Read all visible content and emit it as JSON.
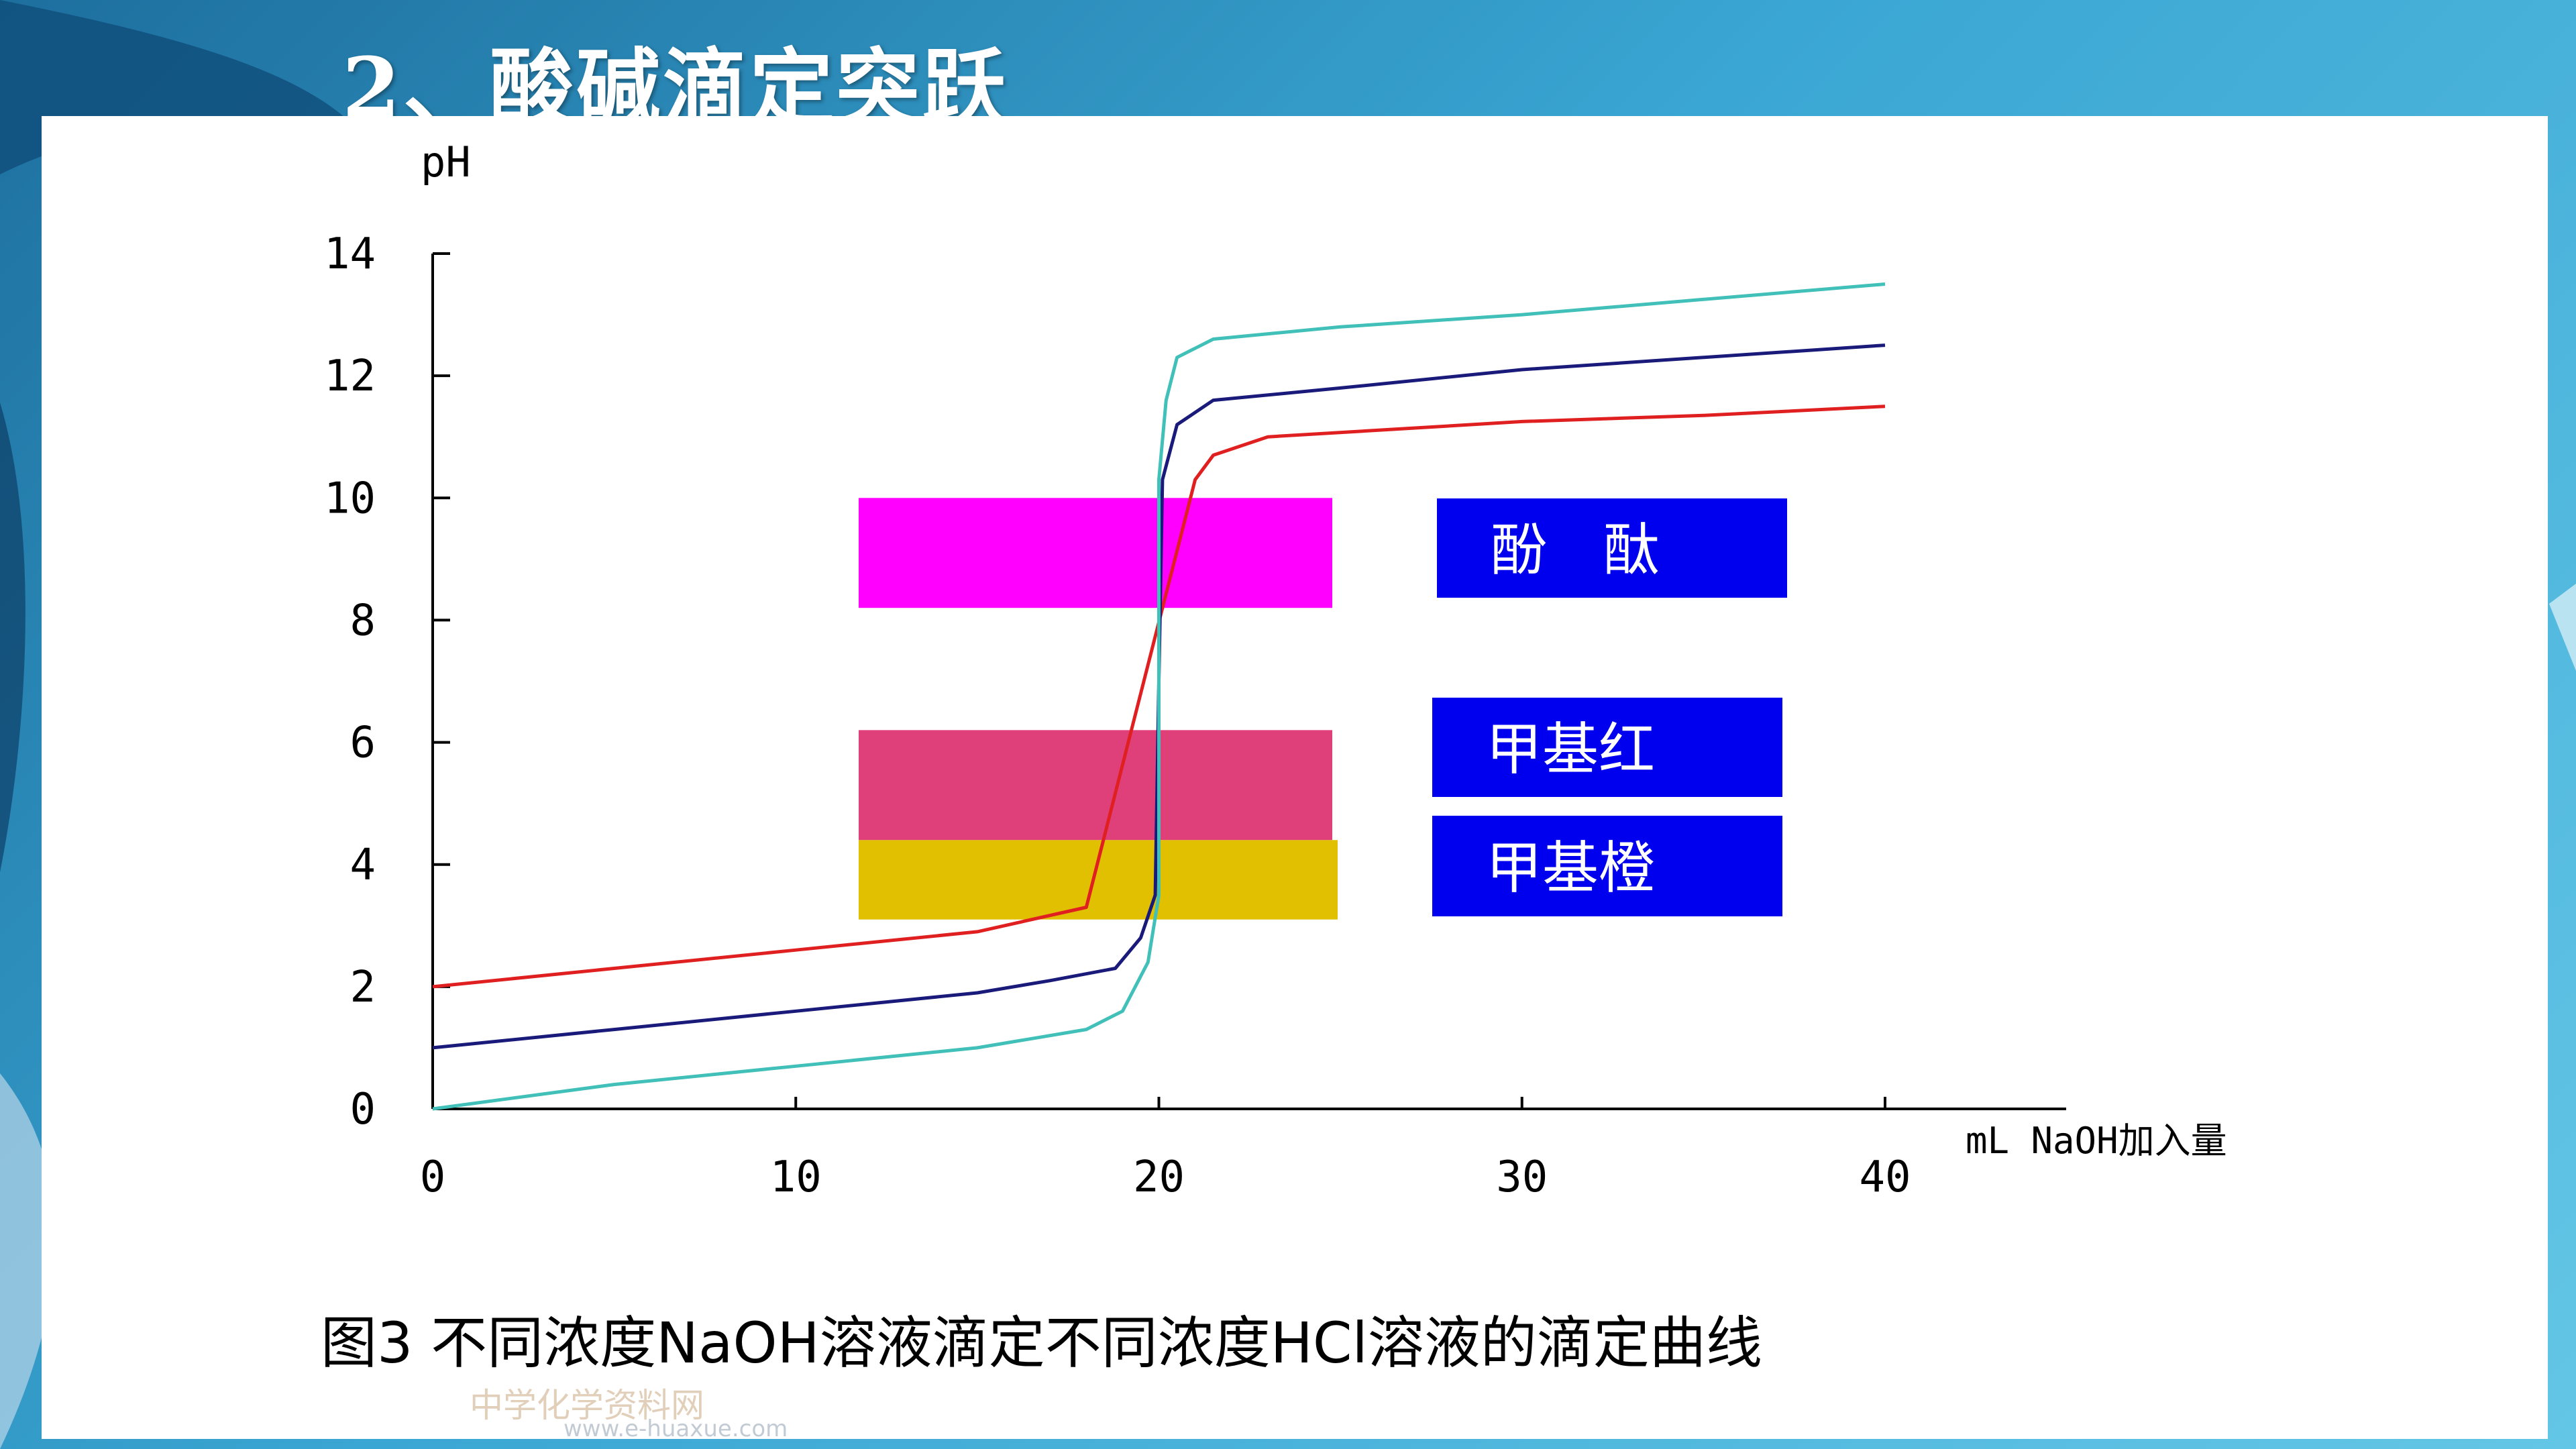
{
  "slide": {
    "title": "2、酸碱滴定突跃"
  },
  "chart_data": {
    "type": "line",
    "ylabel": "pH",
    "xlabel": "mL  NaOH加入量",
    "xlim": [
      0,
      40
    ],
    "ylim": [
      0,
      14
    ],
    "x_ticks": [
      "0",
      "10",
      "20",
      "30",
      "40"
    ],
    "y_ticks": [
      "0",
      "2",
      "4",
      "6",
      "8",
      "10",
      "12",
      "14"
    ],
    "series": [
      {
        "color": "#e02020",
        "points": [
          [
            0,
            2.0
          ],
          [
            5,
            2.3
          ],
          [
            10,
            2.6
          ],
          [
            15,
            2.9
          ],
          [
            18,
            3.3
          ],
          [
            21,
            10.3
          ],
          [
            21.5,
            10.7
          ],
          [
            23,
            11.0
          ],
          [
            30,
            11.25
          ],
          [
            35,
            11.35
          ],
          [
            40,
            11.5
          ]
        ]
      },
      {
        "color": "#1a1a7a",
        "points": [
          [
            0,
            1.0
          ],
          [
            5,
            1.3
          ],
          [
            10,
            1.6
          ],
          [
            15,
            1.9
          ],
          [
            17,
            2.1
          ],
          [
            18.8,
            2.3
          ],
          [
            19.5,
            2.8
          ],
          [
            19.9,
            3.5
          ],
          [
            20,
            7.0
          ],
          [
            20.1,
            10.3
          ],
          [
            20.5,
            11.2
          ],
          [
            21.5,
            11.6
          ],
          [
            25,
            11.8
          ],
          [
            30,
            12.1
          ],
          [
            35,
            12.3
          ],
          [
            40,
            12.5
          ]
        ]
      },
      {
        "color": "#40c0b8",
        "points": [
          [
            0,
            0.0
          ],
          [
            5,
            0.4
          ],
          [
            10,
            0.7
          ],
          [
            15,
            1.0
          ],
          [
            18,
            1.3
          ],
          [
            19,
            1.6
          ],
          [
            19.7,
            2.4
          ],
          [
            20,
            3.5
          ],
          [
            20,
            10.3
          ],
          [
            20.2,
            11.6
          ],
          [
            20.5,
            12.3
          ],
          [
            21.5,
            12.6
          ],
          [
            25,
            12.8
          ],
          [
            30,
            13.0
          ],
          [
            35,
            13.25
          ],
          [
            40,
            13.5
          ]
        ]
      }
    ],
    "indicator_ranges": [
      {
        "label": "酚　酞",
        "ymin": 8.2,
        "ymax": 10.0,
        "color": "#ff00ff"
      },
      {
        "label": "甲基红",
        "ymin": 4.4,
        "ymax": 6.2,
        "color": "#e0407a"
      },
      {
        "label": "甲基橙",
        "ymin": 3.1,
        "ymax": 4.4,
        "color": "#e0c000"
      }
    ],
    "caption": "图3 不同浓度NaOH溶液滴定不同浓度HCl溶液的滴定曲线"
  },
  "watermark": {
    "text": "中学化学资料网",
    "url": "www.e-huaxue.com"
  }
}
